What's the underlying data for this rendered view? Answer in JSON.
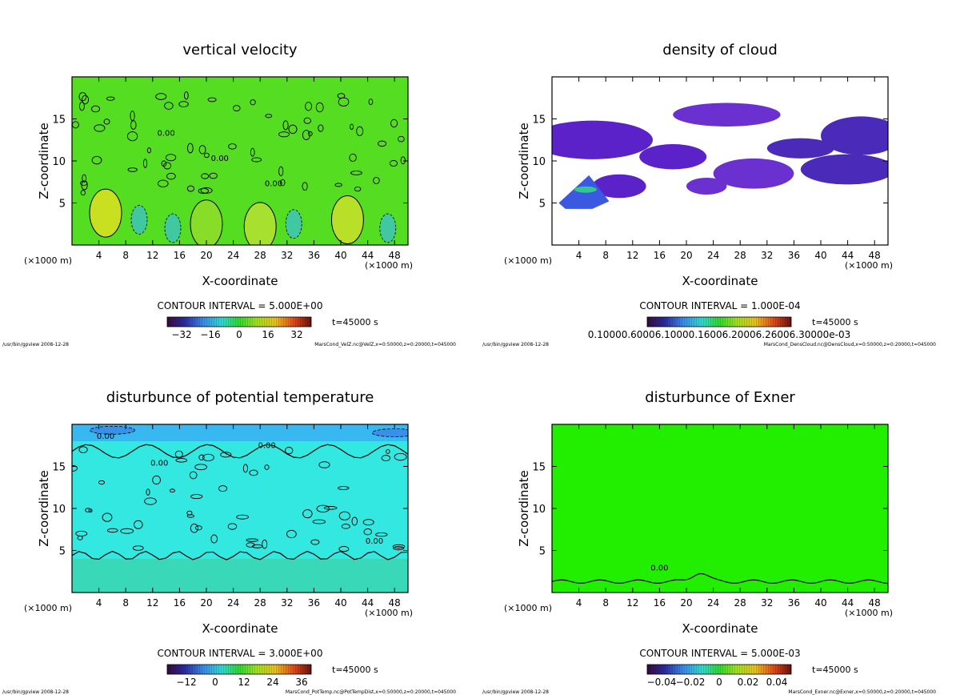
{
  "chart_data": [
    {
      "type": "heatmap",
      "title": "vertical velocity",
      "xlabel": "X-coordinate",
      "ylabel": "Z-coordinate",
      "x_unit": "(×1000 m)",
      "xlim": [
        0,
        50
      ],
      "ylim": [
        0,
        20
      ],
      "x_ticks": [
        4,
        8,
        12,
        16,
        20,
        24,
        28,
        32,
        36,
        40,
        44,
        48
      ],
      "y_ticks": [
        5,
        10,
        15
      ],
      "contour_interval": "CONTOUR INTERVAL = 5.000E+00",
      "contour_label": "0.00",
      "time": "t=45000 s",
      "colorbar_ticks": [
        "−32",
        "−16",
        "0",
        "16",
        "32"
      ],
      "colorbar_range": [
        -40,
        40
      ],
      "footer_left": "/usr/bin/gpview  2008-12-28",
      "footer_right": "MarsCond_VelZ.nc@VelZ,x=0:50000,z=0:20000,t=045000",
      "background_color": "#55dd22"
    },
    {
      "type": "heatmap",
      "title": "density of cloud",
      "xlabel": "X-coordinate",
      "ylabel": "Z-coordinate",
      "x_unit": "(×1000 m)",
      "xlim": [
        0,
        50
      ],
      "ylim": [
        0,
        20
      ],
      "x_ticks": [
        4,
        8,
        12,
        16,
        20,
        24,
        28,
        32,
        36,
        40,
        44,
        48
      ],
      "y_ticks": [
        5,
        10,
        15
      ],
      "contour_interval": "CONTOUR INTERVAL = 1.000E-04",
      "time": "t=45000 s",
      "colorbar_ticks_text": "0.10000.60006.10000.16006.20006.26006.30000e-03",
      "footer_left": "/usr/bin/gpview  2008-12-28",
      "footer_right": "MarsCond_DensCloud.nc@DensCloud,x=0:50000,z=0:20000,t=045000",
      "background_color": "#6633cc"
    },
    {
      "type": "heatmap",
      "title": "disturbunce of potential temperature",
      "xlabel": "X-coordinate",
      "ylabel": "Z-coordinate",
      "x_unit": "(×1000 m)",
      "xlim": [
        0,
        50
      ],
      "ylim": [
        0,
        20
      ],
      "x_ticks": [
        4,
        8,
        12,
        16,
        20,
        24,
        28,
        32,
        36,
        40,
        44,
        48
      ],
      "y_ticks": [
        5,
        10,
        15
      ],
      "contour_interval": "CONTOUR INTERVAL = 3.000E+00",
      "contour_label": "0.00",
      "time": "t=45000 s",
      "colorbar_ticks": [
        "−12",
        "0",
        "12",
        "24",
        "36"
      ],
      "colorbar_range": [
        -20,
        40
      ],
      "footer_left": "/usr/bin/gpview  2008-12-28",
      "footer_right": "MarsCond_PotTemp.nc@PotTempDist,x=0:50000,z=0:20000,t=045000",
      "background_color": "#33e8e0"
    },
    {
      "type": "heatmap",
      "title": "disturbunce of Exner",
      "xlabel": "X-coordinate",
      "ylabel": "Z-coordinate",
      "x_unit": "(×1000 m)",
      "xlim": [
        0,
        50
      ],
      "ylim": [
        0,
        20
      ],
      "x_ticks": [
        4,
        8,
        12,
        16,
        20,
        24,
        28,
        32,
        36,
        40,
        44,
        48
      ],
      "y_ticks": [
        5,
        10,
        15
      ],
      "contour_interval": "CONTOUR INTERVAL = 5.000E-03",
      "contour_label": "0.00",
      "time": "t=45000 s",
      "colorbar_ticks": [
        "−0.04",
        "−0.02",
        "0",
        "0.02",
        "0.04"
      ],
      "colorbar_range": [
        -0.05,
        0.05
      ],
      "footer_left": "/usr/bin/gpview  2008-12-28",
      "footer_right": "MarsCond_Exner.nc@Exner,x=0:50000,z=0:20000,t=045000",
      "background_color": "#22ee00"
    }
  ]
}
